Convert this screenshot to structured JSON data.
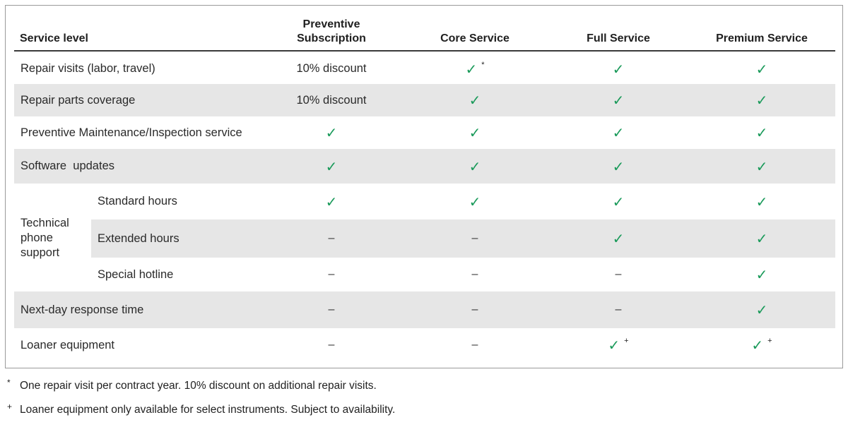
{
  "header": {
    "service_level": "Service level",
    "col1_line1": "Preventive",
    "col1_line2": "Subscription",
    "col2": "Core Service",
    "col3": "Full Service",
    "col4": "Premium Service"
  },
  "rows": {
    "repair_visits": {
      "label": "Repair visits (labor, travel)",
      "c1": "10% discount",
      "c2_mark": "*",
      "c3": "✓",
      "c4": "✓"
    },
    "repair_parts": {
      "label": "Repair parts coverage",
      "c1": "10% discount",
      "c2": "✓",
      "c3": "✓",
      "c4": "✓"
    },
    "preventive": {
      "label": "Preventive Maintenance/Inspection service",
      "c1": "✓",
      "c2": "✓",
      "c3": "✓",
      "c4": "✓"
    },
    "software": {
      "label": "Software  updates",
      "c1": "✓",
      "c2": "✓",
      "c3": "✓",
      "c4": "✓"
    },
    "tech_group_label": [
      "Technical",
      "phone",
      "support"
    ],
    "standard_hours": {
      "label": "Standard hours",
      "c1": "✓",
      "c2": "✓",
      "c3": "✓",
      "c4": "✓"
    },
    "extended_hours": {
      "label": "Extended hours",
      "c1": "–",
      "c2": "–",
      "c3": "✓",
      "c4": "✓"
    },
    "special_hotline": {
      "label": "Special hotline",
      "c1": "–",
      "c2": "–",
      "c3": "–",
      "c4": "✓"
    },
    "next_day": {
      "label": "Next-day response time",
      "c1": "–",
      "c2": "–",
      "c3": "–",
      "c4": "✓"
    },
    "loaner": {
      "label": "Loaner equipment",
      "c1": "–",
      "c2": "–",
      "c3_mark": "+",
      "c4_mark": "+"
    }
  },
  "check_glyph": "✓",
  "colors": {
    "check": "#1a9a5a",
    "shade": "#e6e6e6"
  },
  "footnotes": {
    "f1_symbol": "*",
    "f1_text": "One repair visit per contract year. 10% discount on additional repair visits.",
    "f2_symbol": "+",
    "f2_text": "Loaner equipment only available for select instruments. Subject to availability."
  }
}
